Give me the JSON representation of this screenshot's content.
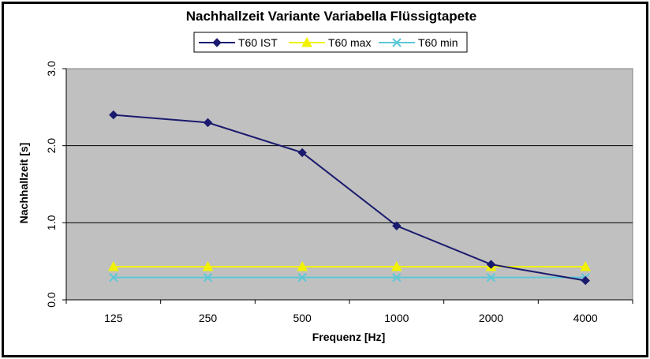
{
  "chart_data": {
    "type": "line",
    "title": "Nachhallzeit Variante Variabella Flüssigtapete",
    "xlabel": "Frequenz [Hz]",
    "ylabel": "Nachhallzeit [s]",
    "categories": [
      "125",
      "250",
      "500",
      "1000",
      "2000",
      "4000"
    ],
    "ylim": [
      0,
      3.0
    ],
    "yticks": [
      "0.0",
      "1.0",
      "2.0",
      "3.0"
    ],
    "grid": true,
    "legend_position": "top",
    "plot_background": "#c0c0c0",
    "series": [
      {
        "name": "T60 IST",
        "values": [
          2.4,
          2.3,
          1.91,
          0.96,
          0.46,
          0.25
        ],
        "color": "#1a1a6e",
        "marker": "diamond"
      },
      {
        "name": "T60 max",
        "values": [
          0.43,
          0.43,
          0.43,
          0.43,
          0.43,
          0.43
        ],
        "color": "#f2f200",
        "marker": "triangle"
      },
      {
        "name": "T60 min",
        "values": [
          0.29,
          0.29,
          0.29,
          0.29,
          0.29,
          0.29
        ],
        "color": "#5bc8d8",
        "marker": "x"
      }
    ]
  }
}
